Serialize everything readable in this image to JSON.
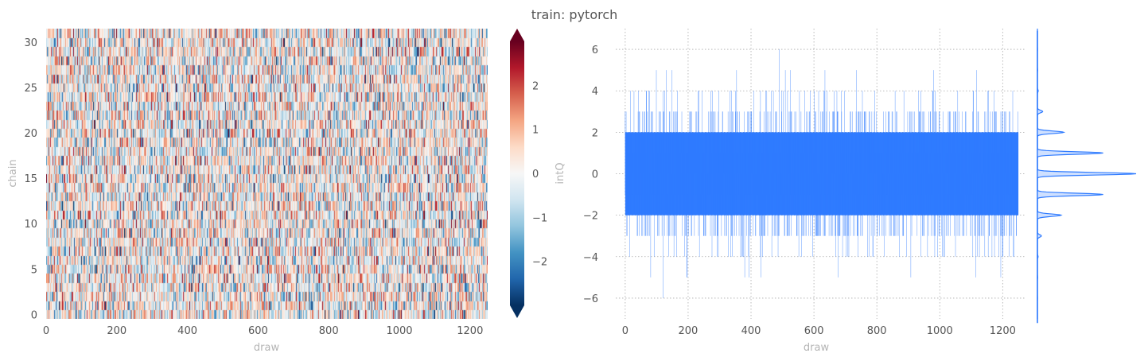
{
  "title": "train: pytorch",
  "colors": {
    "trace": "#2f7bff",
    "grid": "#aaaaaa",
    "tick_text": "#555555",
    "axis_label": "#b5b5b5",
    "cmap": [
      "#053061",
      "#2166ac",
      "#4393c3",
      "#92c5de",
      "#d1e5f0",
      "#f7f7f7",
      "#fddbc7",
      "#f4a582",
      "#d6604d",
      "#b2182b",
      "#67001f"
    ]
  },
  "chart_data": [
    {
      "type": "heatmap",
      "xlabel": "draw",
      "ylabel": "chain",
      "xlim": [
        0,
        1250
      ],
      "ylim": [
        0,
        32
      ],
      "xticks": [
        "0",
        "200",
        "400",
        "600",
        "800",
        "1000",
        "1200"
      ],
      "yticks": [
        "0",
        "5",
        "10",
        "15",
        "20",
        "25",
        "30"
      ],
      "n_draws": 1250,
      "n_chains": 32,
      "value_range": [
        -3,
        3
      ],
      "colorbar": {
        "label": "intQ",
        "ticks": [
          "−2",
          "−1",
          "0",
          "1",
          "2"
        ],
        "extend": "both",
        "colormap": "RdBu_r"
      }
    },
    {
      "type": "line",
      "xlabel": "draw",
      "ylabel": "",
      "xlim": [
        0,
        1250
      ],
      "ylim": [
        -7,
        7
      ],
      "xticks": [
        "0",
        "200",
        "400",
        "600",
        "800",
        "1000",
        "1200"
      ],
      "yticks": [
        "−6",
        "−4",
        "−2",
        "0",
        "2",
        "4",
        "6"
      ],
      "grid": true,
      "n_draws": 1250,
      "observed_range": [
        -6,
        6
      ]
    },
    {
      "type": "area",
      "orientation": "horizontal",
      "description_range": [
        -7,
        7
      ],
      "bins": [
        {
          "y": -6,
          "density": 0.001
        },
        {
          "y": -5,
          "density": 0.002
        },
        {
          "y": -4,
          "density": 0.005
        },
        {
          "y": -3,
          "density": 0.03
        },
        {
          "y": -2,
          "density": 0.18
        },
        {
          "y": -1,
          "density": 0.5
        },
        {
          "y": 0,
          "density": 0.75
        },
        {
          "y": 1,
          "density": 0.5
        },
        {
          "y": 2,
          "density": 0.2
        },
        {
          "y": 3,
          "density": 0.04
        },
        {
          "y": 4,
          "density": 0.006
        },
        {
          "y": 5,
          "density": 0.002
        },
        {
          "y": 6,
          "density": 0.001
        }
      ]
    }
  ]
}
